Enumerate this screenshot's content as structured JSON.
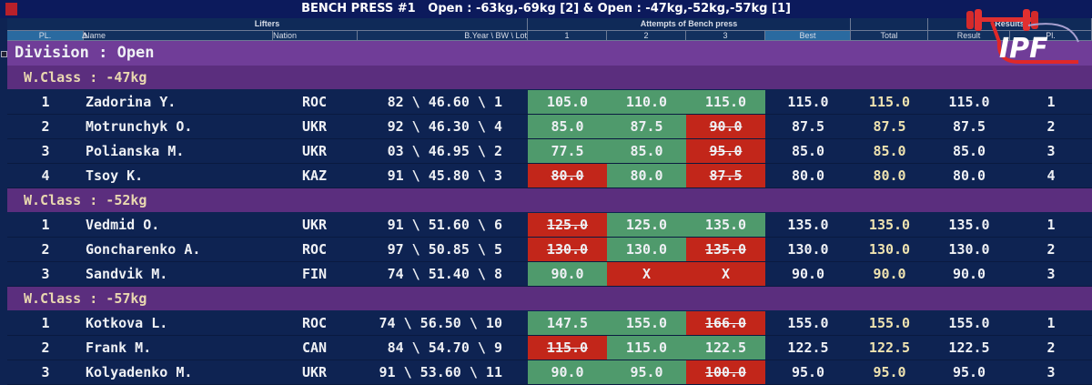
{
  "title": "BENCH PRESS #1   Open : -63kg,-69kg [2] & Open : -47kg,-52kg,-57kg [1]",
  "groups": {
    "lifters": "Lifters",
    "attempts": "Attempts of Bench press",
    "blank": "",
    "results": "Results"
  },
  "columns": [
    "PL.",
    "Name",
    "Nation",
    "B.Year \\ BW \\ Lot",
    "1",
    "2",
    "3",
    "Best",
    "Total",
    "Result",
    "Pl."
  ],
  "sort_indicator": "Δ",
  "division": "Division : Open",
  "logo_text": "IPF",
  "classes": [
    {
      "label": "W.Class : -47kg",
      "rows": [
        {
          "pl": "1",
          "name": "Zadorina Y.",
          "nation": "ROC",
          "info": "82 \\ 46.60 \\ 1",
          "att": [
            {
              "v": "105.0",
              "s": "good"
            },
            {
              "v": "110.0",
              "s": "good"
            },
            {
              "v": "115.0",
              "s": "good"
            }
          ],
          "best": "115.0",
          "total": "115.0",
          "result": "115.0",
          "place": "1"
        },
        {
          "pl": "2",
          "name": "Motrunchyk O.",
          "nation": "UKR",
          "info": "92 \\ 46.30 \\ 4",
          "att": [
            {
              "v": "85.0",
              "s": "good"
            },
            {
              "v": "87.5",
              "s": "good"
            },
            {
              "v": "90.0",
              "s": "fail"
            }
          ],
          "best": "87.5",
          "total": "87.5",
          "result": "87.5",
          "place": "2"
        },
        {
          "pl": "3",
          "name": "Polianska M.",
          "nation": "UKR",
          "info": "03 \\ 46.95 \\ 2",
          "att": [
            {
              "v": "77.5",
              "s": "good"
            },
            {
              "v": "85.0",
              "s": "good"
            },
            {
              "v": "95.0",
              "s": "fail"
            }
          ],
          "best": "85.0",
          "total": "85.0",
          "result": "85.0",
          "place": "3"
        },
        {
          "pl": "4",
          "name": "Tsoy K.",
          "nation": "KAZ",
          "info": "91 \\ 45.80 \\ 3",
          "att": [
            {
              "v": "80.0",
              "s": "fail"
            },
            {
              "v": "80.0",
              "s": "good"
            },
            {
              "v": "87.5",
              "s": "fail"
            }
          ],
          "best": "80.0",
          "total": "80.0",
          "result": "80.0",
          "place": "4"
        }
      ]
    },
    {
      "label": "W.Class : -52kg",
      "rows": [
        {
          "pl": "1",
          "name": "Vedmid O.",
          "nation": "UKR",
          "info": "91 \\ 51.60 \\ 6",
          "att": [
            {
              "v": "125.0",
              "s": "fail"
            },
            {
              "v": "125.0",
              "s": "good"
            },
            {
              "v": "135.0",
              "s": "good"
            }
          ],
          "best": "135.0",
          "total": "135.0",
          "result": "135.0",
          "place": "1"
        },
        {
          "pl": "2",
          "name": "Goncharenko A.",
          "nation": "ROC",
          "info": "97 \\ 50.85 \\ 5",
          "att": [
            {
              "v": "130.0",
              "s": "fail"
            },
            {
              "v": "130.0",
              "s": "good"
            },
            {
              "v": "135.0",
              "s": "fail"
            }
          ],
          "best": "130.0",
          "total": "130.0",
          "result": "130.0",
          "place": "2"
        },
        {
          "pl": "3",
          "name": "Sandvik M.",
          "nation": "FIN",
          "info": "74 \\ 51.40 \\ 8",
          "att": [
            {
              "v": "90.0",
              "s": "good"
            },
            {
              "v": "X",
              "s": "x"
            },
            {
              "v": "X",
              "s": "x"
            }
          ],
          "best": "90.0",
          "total": "90.0",
          "result": "90.0",
          "place": "3"
        }
      ]
    },
    {
      "label": "W.Class : -57kg",
      "rows": [
        {
          "pl": "1",
          "name": "Kotkova L.",
          "nation": "ROC",
          "info": "74 \\ 56.50 \\ 10",
          "att": [
            {
              "v": "147.5",
              "s": "good"
            },
            {
              "v": "155.0",
              "s": "good"
            },
            {
              "v": "166.0",
              "s": "fail"
            }
          ],
          "best": "155.0",
          "total": "155.0",
          "result": "155.0",
          "place": "1"
        },
        {
          "pl": "2",
          "name": "Frank M.",
          "nation": "CAN",
          "info": "84 \\ 54.70 \\ 9",
          "att": [
            {
              "v": "115.0",
              "s": "fail"
            },
            {
              "v": "115.0",
              "s": "good"
            },
            {
              "v": "122.5",
              "s": "good"
            }
          ],
          "best": "122.5",
          "total": "122.5",
          "result": "122.5",
          "place": "2"
        },
        {
          "pl": "3",
          "name": "Kolyadenko M.",
          "nation": "UKR",
          "info": "91 \\ 53.60 \\ 11",
          "att": [
            {
              "v": "90.0",
              "s": "good"
            },
            {
              "v": "95.0",
              "s": "good"
            },
            {
              "v": "100.0",
              "s": "fail"
            }
          ],
          "best": "95.0",
          "total": "95.0",
          "result": "95.0",
          "place": "3"
        }
      ]
    }
  ]
}
